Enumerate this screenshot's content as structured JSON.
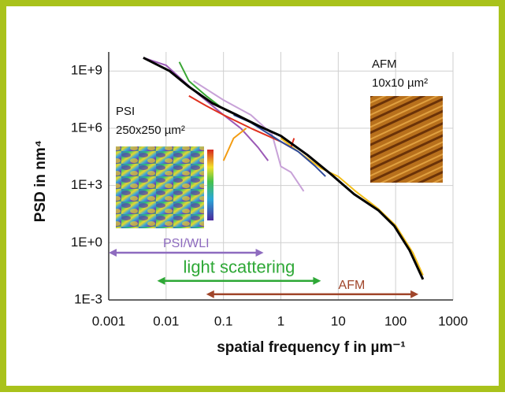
{
  "chart_data": {
    "type": "line",
    "xlabel": "spatial frequency  f in µm⁻¹",
    "ylabel": "PSD in nm⁴",
    "xscale": "log",
    "yscale": "log",
    "xlim": [
      0.001,
      1000
    ],
    "ylim": [
      0.001,
      10000000000
    ],
    "xticks": [
      0.001,
      0.01,
      0.1,
      1,
      10,
      100,
      1000
    ],
    "yticks": [
      {
        "value": 0.001,
        "label": "1E-3"
      },
      {
        "value": 1,
        "label": "1E+0"
      },
      {
        "value": 1000,
        "label": "1E+3"
      },
      {
        "value": 1000000,
        "label": "1E+6"
      },
      {
        "value": 1000000000,
        "label": "1E+9"
      }
    ],
    "grid": true,
    "series": [
      {
        "color": "#f2be1a",
        "x": [
          1,
          2,
          5,
          10,
          20,
          50,
          100,
          200,
          300
        ],
        "values": [
          300000,
          60000,
          8000,
          3000,
          500,
          60,
          8,
          0.3,
          0.02
        ]
      },
      {
        "color": "#c8a2d8",
        "x": [
          0.03,
          0.1,
          0.3,
          0.7,
          1,
          1.5,
          2.5
        ],
        "values": [
          300000000,
          30000000,
          5000000,
          500000,
          10000,
          5000,
          500
        ]
      },
      {
        "color": "#9b59b6",
        "x": [
          0.004,
          0.01,
          0.03,
          0.1,
          0.2,
          0.4,
          0.6
        ],
        "values": [
          5000000000,
          2000000000,
          100000000,
          5000000,
          1000000,
          100000,
          20000
        ]
      },
      {
        "color": "#f39c12",
        "x": [
          0.1,
          0.15,
          0.25
        ],
        "values": [
          20000,
          300000,
          1000000
        ]
      },
      {
        "color": "#e0301e",
        "x": [
          0.025,
          0.05,
          0.1,
          0.3,
          1,
          1.5,
          1.7
        ],
        "values": [
          50000000,
          15000000,
          5000000,
          1000000,
          200000,
          100000,
          300000
        ]
      },
      {
        "color": "#3aa635",
        "x": [
          0.017,
          0.025,
          0.05,
          0.1
        ],
        "values": [
          3000000000,
          300000000,
          50000000,
          10000000
        ]
      },
      {
        "color": "#2e4a9a",
        "x": [
          0.15,
          0.3,
          1,
          2,
          4,
          6
        ],
        "values": [
          5000000,
          2000000,
          200000,
          60000,
          10000,
          3000
        ]
      },
      {
        "color": "#000000",
        "x": [
          0.004,
          0.0115,
          0.025,
          0.065,
          0.17,
          0.44,
          1,
          2.9,
          7.4,
          19,
          50,
          95,
          175,
          300
        ],
        "values": [
          5000000000,
          1000000000,
          150000000,
          20000000,
          5000000,
          1200000,
          400000,
          40000,
          4000,
          350,
          50,
          7.5,
          0.4,
          0.012
        ]
      }
    ],
    "ranges": [
      {
        "text": "PSI/WLI",
        "x": [
          0.001,
          0.5
        ],
        "y": 0.3,
        "color": "#8e6bbf"
      },
      {
        "text": "light scattering",
        "x": [
          0.007,
          5
        ],
        "y": 0.01,
        "color": "#2ea836"
      },
      {
        "text": "AFM",
        "x": [
          0.05,
          250
        ],
        "y": 0.002,
        "color": "#a0452a"
      }
    ],
    "insets": [
      {
        "title": "PSI",
        "size": "250x250 µm²"
      },
      {
        "title": "AFM",
        "size": "10x10 µm²"
      }
    ]
  }
}
